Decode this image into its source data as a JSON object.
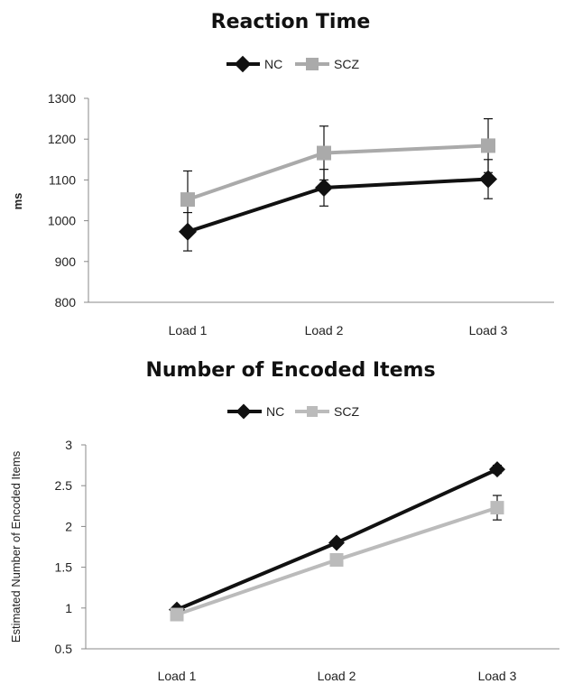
{
  "chart_data": [
    {
      "type": "line",
      "title": "Reaction Time",
      "xlabel": "",
      "ylabel": "ms",
      "categories": [
        "Load 1",
        "Load 2",
        "Load 3"
      ],
      "ylim": [
        800,
        1300
      ],
      "yticks": [
        800,
        900,
        1000,
        1100,
        1200,
        1300
      ],
      "grid": false,
      "legend_position": "top",
      "series": [
        {
          "name": "NC",
          "values": [
            973,
            1081,
            1102
          ],
          "error": [
            47,
            45,
            48
          ],
          "color": "#111111",
          "marker": "diamond"
        },
        {
          "name": "SCZ",
          "values": [
            1052,
            1166,
            1184
          ],
          "error": [
            70,
            66,
            66
          ],
          "color": "#aaaaaa",
          "marker": "square"
        }
      ]
    },
    {
      "type": "line",
      "title": "Number of Encoded Items",
      "xlabel": "",
      "ylabel": "Estimated Number of Encoded Items",
      "categories": [
        "Load 1",
        "Load 2",
        "Load 3"
      ],
      "ylim": [
        0.5,
        3
      ],
      "yticks": [
        0.5,
        1,
        1.5,
        2,
        2.5,
        3
      ],
      "ytick_labels": [
        "0.5",
        "1",
        "1.5",
        "2",
        "2.5",
        "3"
      ],
      "grid": false,
      "legend_position": "top",
      "series": [
        {
          "name": "NC",
          "values": [
            0.98,
            1.8,
            2.7
          ],
          "error": [
            0,
            0,
            0.05
          ],
          "color": "#111111",
          "marker": "diamond"
        },
        {
          "name": "SCZ",
          "values": [
            0.92,
            1.59,
            2.23
          ],
          "error": [
            0,
            0,
            0.15
          ],
          "color": "#bbbbbb",
          "marker": "square"
        }
      ]
    }
  ]
}
